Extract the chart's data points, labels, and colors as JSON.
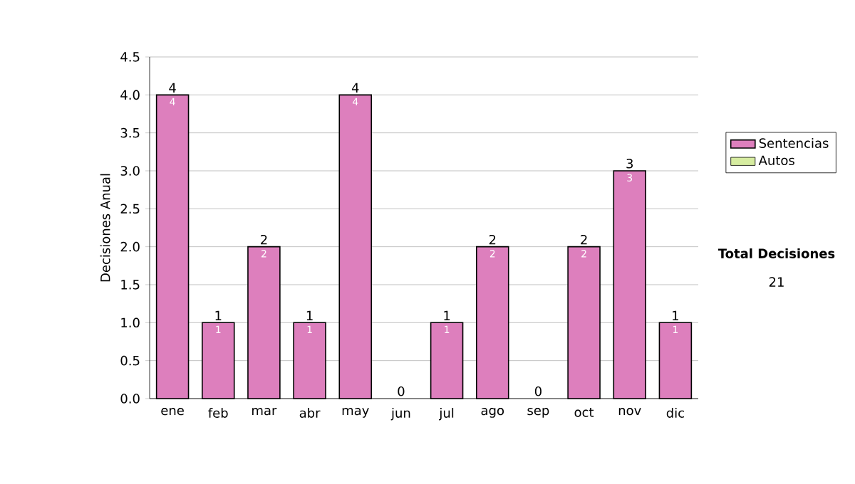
{
  "chart_data": {
    "type": "bar",
    "ylabel": "Decisiones Anual",
    "categories": [
      "ene",
      "feb",
      "mar",
      "abr",
      "may",
      "jun",
      "jul",
      "ago",
      "sep",
      "oct",
      "nov",
      "dic"
    ],
    "stacked": true,
    "series": [
      {
        "name": "Sentencias",
        "color": "#dd7fbd",
        "values": [
          4,
          1,
          2,
          1,
          4,
          0,
          1,
          2,
          0,
          2,
          3,
          1
        ],
        "value_labels": [
          "4",
          "1",
          "2",
          "1",
          "4",
          null,
          "1",
          "2",
          null,
          "2",
          "3",
          "1"
        ]
      },
      {
        "name": "Autos",
        "color": "#d6eca0",
        "values": [
          null,
          null,
          null,
          null,
          null,
          null,
          null,
          null,
          null,
          null,
          null,
          null
        ]
      }
    ],
    "totals": [
      "4",
      "1",
      "2",
      "1",
      "4",
      "0",
      "1",
      "2",
      "0",
      "2",
      "3",
      "1"
    ],
    "ylim": [
      0,
      4.5
    ],
    "yticks": [
      {
        "value": 0,
        "label": "0.0"
      },
      {
        "value": 0.5,
        "label": "0.5"
      },
      {
        "value": 1,
        "label": "1.0"
      },
      {
        "value": 1.5,
        "label": "1.5"
      },
      {
        "value": 2,
        "label": "2.0"
      },
      {
        "value": 2.5,
        "label": "2.5"
      },
      {
        "value": 3,
        "label": "3.0"
      },
      {
        "value": 3.5,
        "label": "3.5"
      },
      {
        "value": 4,
        "label": "4.0"
      },
      {
        "value": 4.5,
        "label": "4.5"
      }
    ],
    "grid": "y",
    "legend": "right",
    "annotations": [
      "Total Decisiones",
      "21"
    ]
  }
}
